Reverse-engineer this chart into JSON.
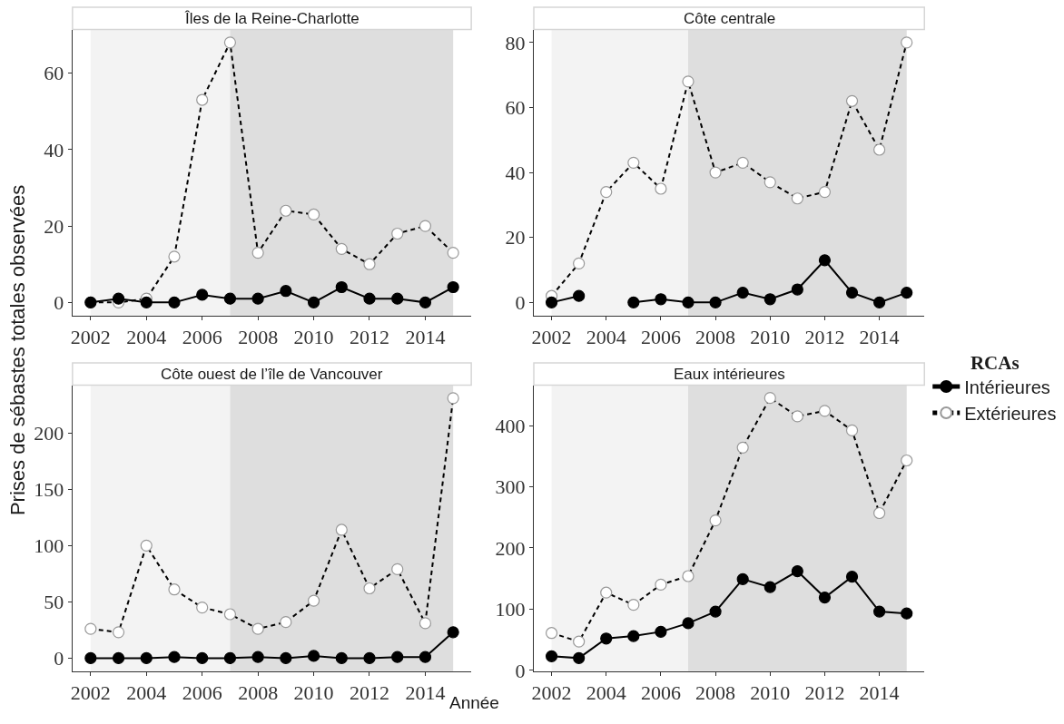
{
  "chart_data": [
    {
      "type": "line",
      "title": "Îles de la Reine-Charlotte",
      "ylabel": "Prises de sébastes totales observées",
      "legend": "right",
      "legend_title": "RCAs",
      "marker": "circle",
      "x": [
        2002,
        2003,
        2004,
        2005,
        2006,
        2007,
        2008,
        2009,
        2010,
        2011,
        2012,
        2013,
        2014,
        2015
      ],
      "xlim": [
        2001.35,
        2015.65
      ],
      "xticks": [
        2002,
        2004,
        2006,
        2008,
        2010,
        2012,
        2014
      ],
      "ylim": [
        -3.4,
        71.4
      ],
      "yticks": [
        0,
        20,
        40,
        60
      ],
      "bands": [
        {
          "axis": "x",
          "from": 2002,
          "to": 2007,
          "color": "#f3f3f3"
        },
        {
          "axis": "x",
          "from": 2007,
          "to": 2015,
          "color": "#dedede"
        }
      ],
      "series": [
        {
          "name": "Intérieures",
          "color": "#000000",
          "line_style": "solid",
          "values": [
            0,
            1,
            0,
            0,
            2,
            1,
            1,
            3,
            0,
            4,
            1,
            1,
            0,
            4
          ]
        },
        {
          "name": "Extérieures",
          "color": "#ffffff",
          "line_style": "dashed",
          "values": [
            0,
            0,
            1,
            12,
            53,
            68,
            13,
            24,
            23,
            14,
            10,
            18,
            20,
            13
          ]
        }
      ]
    },
    {
      "type": "line",
      "title": "Côte centrale",
      "marker": "circle",
      "x": [
        2002,
        2003,
        2004,
        2005,
        2006,
        2007,
        2008,
        2009,
        2010,
        2011,
        2012,
        2013,
        2014,
        2015
      ],
      "xlim": [
        2001.35,
        2015.65
      ],
      "xticks": [
        2002,
        2004,
        2006,
        2008,
        2010,
        2012,
        2014
      ],
      "ylim": [
        -4,
        84
      ],
      "yticks": [
        0,
        20,
        40,
        60,
        80
      ],
      "bands": [
        {
          "axis": "x",
          "from": 2002,
          "to": 2007,
          "color": "#f3f3f3"
        },
        {
          "axis": "x",
          "from": 2007,
          "to": 2015,
          "color": "#dedede"
        }
      ],
      "series": [
        {
          "name": "Intérieures",
          "color": "#000000",
          "line_style": "solid",
          "values": [
            0,
            2,
            null,
            0,
            1,
            0,
            0,
            3,
            1,
            4,
            13,
            3,
            0,
            3
          ]
        },
        {
          "name": "Extérieures",
          "color": "#ffffff",
          "line_style": "dashed",
          "values": [
            2,
            12,
            34,
            43,
            35,
            68,
            40,
            43,
            37,
            32,
            34,
            62,
            47,
            80
          ]
        }
      ]
    },
    {
      "type": "line",
      "title": "Côte ouest de l’île de Vancouver",
      "xlabel": "Année",
      "marker": "circle",
      "x": [
        2002,
        2003,
        2004,
        2005,
        2006,
        2007,
        2008,
        2009,
        2010,
        2011,
        2012,
        2013,
        2014,
        2015
      ],
      "xlim": [
        2001.35,
        2015.65
      ],
      "xticks": [
        2002,
        2004,
        2006,
        2008,
        2010,
        2012,
        2014
      ],
      "ylim": [
        -11.55,
        242.55
      ],
      "yticks": [
        0,
        50,
        100,
        150,
        200
      ],
      "bands": [
        {
          "axis": "x",
          "from": 2002,
          "to": 2007,
          "color": "#f3f3f3"
        },
        {
          "axis": "x",
          "from": 2007,
          "to": 2015,
          "color": "#dedede"
        }
      ],
      "series": [
        {
          "name": "Intérieures",
          "color": "#000000",
          "line_style": "solid",
          "values": [
            0,
            0,
            0,
            1,
            0,
            0,
            1,
            0,
            2,
            0,
            0,
            1,
            1,
            23
          ]
        },
        {
          "name": "Extérieures",
          "color": "#ffffff",
          "line_style": "dashed",
          "values": [
            26,
            23,
            100,
            61,
            45,
            39,
            26,
            32,
            51,
            114,
            62,
            79,
            31,
            231
          ]
        }
      ]
    },
    {
      "type": "line",
      "title": "Eaux intérieures",
      "marker": "circle",
      "x": [
        2002,
        2003,
        2004,
        2005,
        2006,
        2007,
        2008,
        2009,
        2010,
        2011,
        2012,
        2013,
        2014,
        2015
      ],
      "xlim": [
        2001.35,
        2015.65
      ],
      "xticks": [
        2002,
        2004,
        2006,
        2008,
        2010,
        2012,
        2014
      ],
      "ylim": [
        -1.25,
        466
      ],
      "yticks": [
        0,
        100,
        200,
        300,
        400
      ],
      "bands": [
        {
          "axis": "x",
          "from": 2002,
          "to": 2007,
          "color": "#f3f3f3"
        },
        {
          "axis": "x",
          "from": 2007,
          "to": 2015,
          "color": "#dedede"
        }
      ],
      "series": [
        {
          "name": "Intérieures",
          "color": "#000000",
          "line_style": "solid",
          "values": [
            23,
            20,
            52,
            56,
            63,
            77,
            96,
            149,
            136,
            162,
            119,
            153,
            96,
            93
          ]
        },
        {
          "name": "Extérieures",
          "color": "#ffffff",
          "line_style": "dashed",
          "values": [
            61,
            47,
            127,
            107,
            140,
            154,
            245,
            364,
            445,
            415,
            424,
            392,
            257,
            343
          ]
        }
      ]
    }
  ]
}
